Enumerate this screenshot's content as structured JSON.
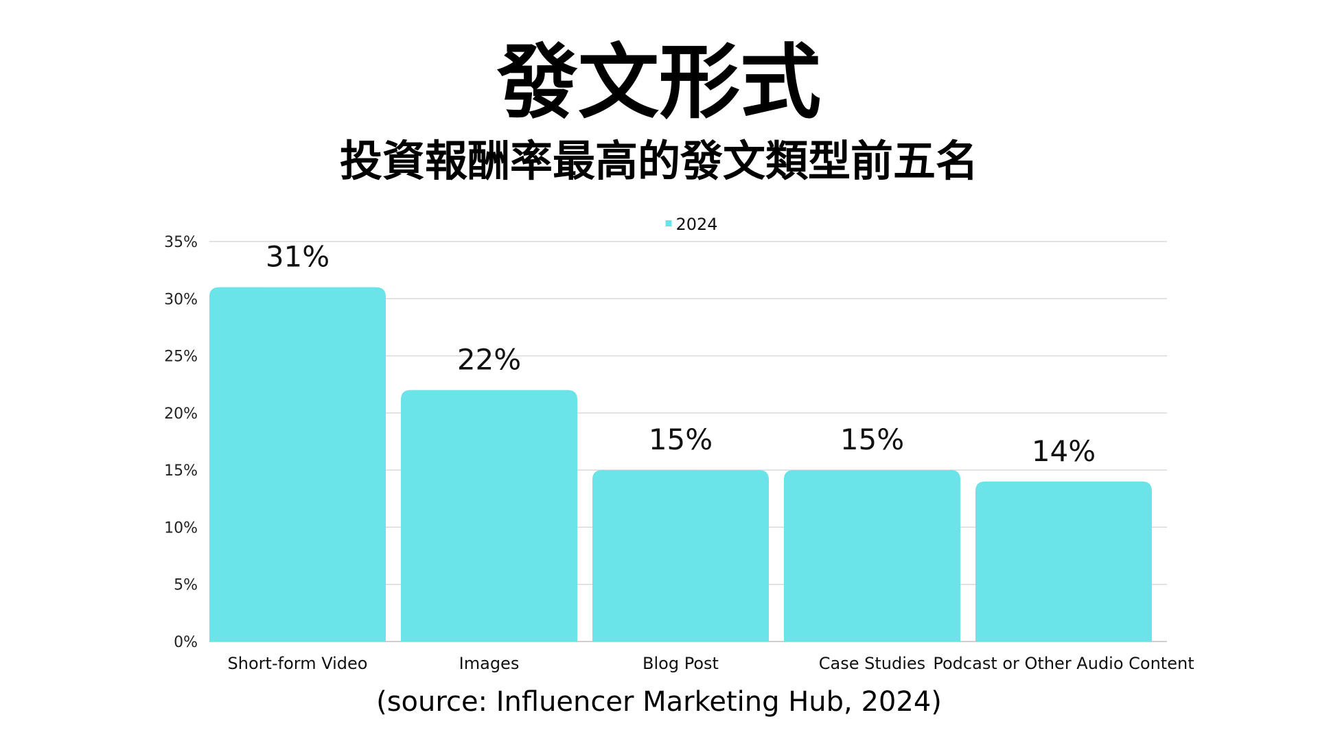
{
  "header": {
    "title": "發文形式",
    "subtitle": "投資報酬率最高的發文類型前五名"
  },
  "footer": {
    "source": "(source: Influencer Marketing Hub, 2024)"
  },
  "colors": {
    "bar": "#6ae4e8",
    "grid": "#d9d9d9",
    "axis": "#bfbfbf"
  },
  "chart_data": {
    "type": "bar",
    "title": "",
    "xlabel": "",
    "ylabel": "",
    "categories": [
      "Short-form Video",
      "Images",
      "Blog Post",
      "Case Studies",
      "Podcast or Other Audio Content"
    ],
    "series": [
      {
        "name": "2024",
        "values": [
          31,
          22,
          15,
          15,
          14
        ]
      }
    ],
    "data_labels": [
      "31%",
      "22%",
      "15%",
      "15%",
      "14%"
    ],
    "y_ticks": [
      0,
      5,
      10,
      15,
      20,
      25,
      30,
      35
    ],
    "y_tick_labels": [
      "0%",
      "5%",
      "10%",
      "15%",
      "20%",
      "25%",
      "30%",
      "35%"
    ],
    "ylim": [
      0,
      35
    ],
    "grid": true,
    "legend": "top-center"
  }
}
